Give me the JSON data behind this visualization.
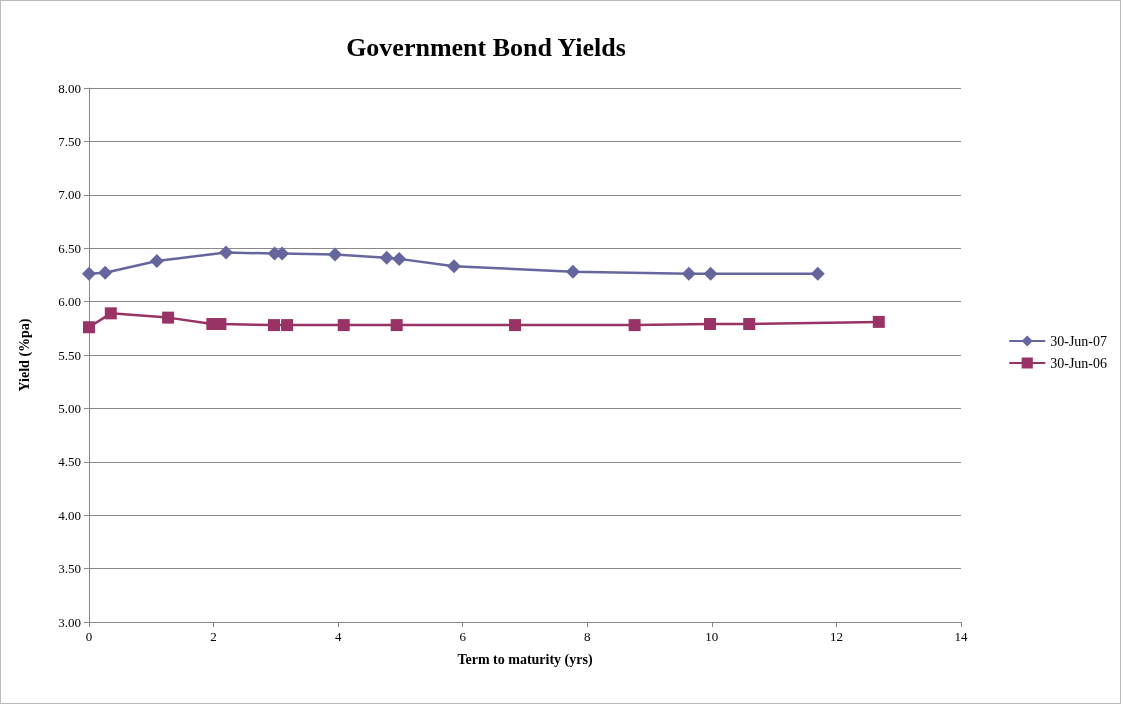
{
  "chart_data": {
    "type": "line",
    "title": "Government Bond Yields",
    "xlabel": "Term to maturity (yrs)",
    "ylabel": "Yield (%pa)",
    "series": [
      {
        "name": "30-Jun-07",
        "color": "#66669f",
        "marker": "diamond",
        "x": [
          0,
          0.26,
          1.09,
          2.2,
          2.98,
          3.1,
          3.95,
          4.78,
          4.98,
          5.86,
          7.77,
          9.63,
          9.98,
          11.7
        ],
        "values": [
          6.26,
          6.27,
          6.38,
          6.46,
          6.45,
          6.45,
          6.44,
          6.41,
          6.4,
          6.33,
          6.28,
          6.26,
          6.26,
          6.26
        ]
      },
      {
        "name": "30-Jun-06",
        "color": "#993366",
        "marker": "square",
        "x": [
          0,
          0.35,
          1.27,
          1.98,
          2.11,
          2.97,
          3.18,
          4.09,
          4.94,
          6.84,
          8.76,
          9.97,
          10.6,
          12.68
        ],
        "values": [
          5.76,
          5.89,
          5.85,
          5.79,
          5.79,
          5.78,
          5.78,
          5.78,
          5.78,
          5.78,
          5.78,
          5.79,
          5.79,
          5.81
        ]
      }
    ],
    "xlim": [
      0,
      14
    ],
    "xticks": [
      0,
      2,
      4,
      6,
      8,
      10,
      12,
      14
    ],
    "ylim": [
      3,
      8
    ],
    "yticks": [
      {
        "value": 3,
        "label": "3.00"
      },
      {
        "value": 3.5,
        "label": "3.50"
      },
      {
        "value": 4,
        "label": "4.00"
      },
      {
        "value": 4.5,
        "label": "4.50"
      },
      {
        "value": 5,
        "label": "5.00"
      },
      {
        "value": 5.5,
        "label": "5.50"
      },
      {
        "value": 6,
        "label": "6.00"
      },
      {
        "value": 6.5,
        "label": "6.50"
      },
      {
        "value": 7,
        "label": "7.00"
      },
      {
        "value": 7.5,
        "label": "7.50"
      },
      {
        "value": 8,
        "label": "8.00"
      }
    ],
    "grid": "y",
    "legend": "right",
    "line_style": "solid"
  }
}
